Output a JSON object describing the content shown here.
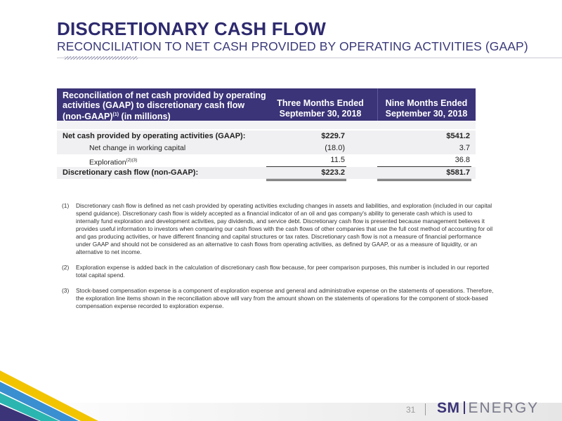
{
  "header": {
    "title": "DISCRETIONARY CASH FLOW",
    "subtitle": "RECONCILIATION TO NET CASH PROVIDED BY OPERATING ACTIVITIES (GAAP)"
  },
  "table": {
    "head": {
      "col1_line1": "Reconciliation of net cash provided by operating",
      "col1_line2": "activities (GAAP) to discretionary cash flow",
      "col1_line3_a": "(non-GAAP)",
      "col1_line3_sup": "(1)",
      "col1_line3_b": " (in millions)",
      "col2_line1": "Three Months Ended",
      "col2_line2": "September 30, 2018",
      "col3_line1": "Nine Months Ended",
      "col3_line2": "September 30, 2018"
    },
    "rows": [
      {
        "label": "Net cash provided by operating activities (GAAP):",
        "three": "$229.7",
        "nine": "$541.2"
      },
      {
        "label": "Net change in working capital",
        "three": "(18.0)",
        "nine": "3.7"
      },
      {
        "label": "Exploration",
        "sup": "(2)(3)",
        "three": "11.5",
        "nine": "36.8"
      },
      {
        "label": "Discretionary cash flow (non-GAAP):",
        "three": "$223.2",
        "nine": "$581.7"
      }
    ]
  },
  "footnotes": [
    {
      "num": "(1)",
      "text": "Discretionary cash flow is defined as net cash provided by operating activities excluding changes in assets and liabilities, and exploration (included in our capital spend guidance). Discretionary cash flow is widely accepted as a financial indicator of an oil and gas company's ability to generate cash which is used to internally fund exploration and development activities, pay dividends, and service debt. Discretionary cash flow is presented because management believes it provides useful information to investors when comparing our cash flows with the cash flows of other companies that use the full cost method of accounting for oil and gas producing activities, or have different financing and capital structures or tax rates. Discretionary cash flow is not a measure of financial performance under GAAP and should not be considered as an alternative to cash flows from operating activities, as defined by GAAP, or as a measure of liquidity, or an alternative to net income."
    },
    {
      "num": "(2)",
      "text": "Exploration expense is added back in the calculation of discretionary cash flow because, for peer comparison purposes, this number is included in our reported total capital spend."
    },
    {
      "num": "(3)",
      "text": "Stock-based compensation expense is a component of exploration expense and general and administrative expense on the statements of operations. Therefore, the exploration line items shown in the reconciliation above will vary from the amount shown on the statements of operations for the component of stock-based compensation expense recorded to exploration expense."
    }
  ],
  "footer": {
    "page_number": "31",
    "logo_sm": "SM",
    "logo_energy": "ENERGY"
  },
  "colors": {
    "brand_purple": "#3b3478",
    "title": "#2e2a6e",
    "deco_yellow": "#f2c400",
    "deco_blue": "#3a8fd0",
    "deco_teal": "#2bb5b0"
  }
}
